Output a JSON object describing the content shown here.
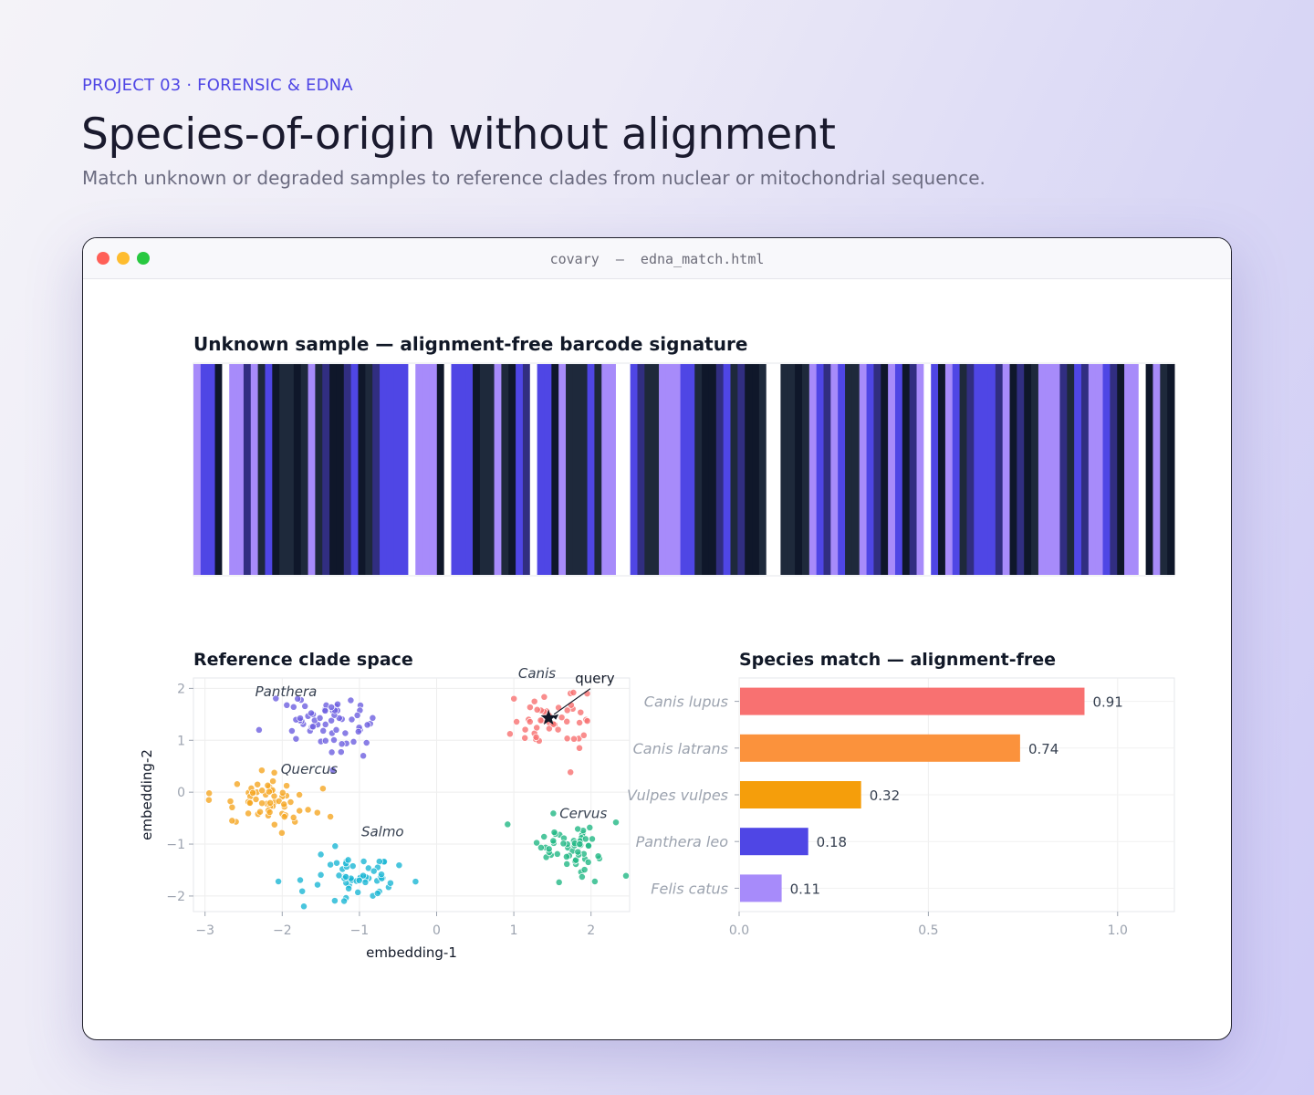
{
  "header": {
    "eyebrow": "PROJECT 03 · FORENSIC & EDNA",
    "title": "Species-of-origin without alignment",
    "subtitle": "Match unknown or degraded samples to reference clades from nuclear or mitochondrial sequence."
  },
  "window": {
    "title": "covary  —  edna_match.html"
  },
  "colors": {
    "barcode_palette": [
      "#4f46e5",
      "#a78bfa",
      "#1e293b",
      "#0f172a",
      "#312e81",
      "#ffffff"
    ],
    "clades": {
      "Panthera": "#6d5fe0",
      "Canis": "#f87171",
      "Quercus": "#f5a623",
      "Cervus": "#22b884",
      "Salmo": "#1bb6d4"
    },
    "match_bars": [
      "#f87171",
      "#fb923c",
      "#f59e0b",
      "#4f46e5",
      "#a78bfa"
    ]
  },
  "chart_data": [
    {
      "type": "heatmap",
      "title": "Unknown sample — alignment-free barcode signature",
      "columns": [
        1,
        0,
        0,
        3,
        5,
        1,
        1,
        4,
        1,
        2,
        0,
        3,
        2,
        2,
        3,
        2,
        1,
        2,
        4,
        3,
        3,
        4,
        0,
        3,
        2,
        4,
        0,
        0,
        0,
        0,
        5,
        1,
        1,
        1,
        3,
        5,
        0,
        0,
        0,
        3,
        2,
        2,
        1,
        2,
        3,
        0,
        4,
        5,
        0,
        0,
        3,
        1,
        2,
        2,
        2,
        0,
        2,
        1,
        1,
        5,
        5,
        0,
        4,
        2,
        2,
        1,
        1,
        1,
        0,
        0,
        2,
        3,
        3,
        4,
        0,
        2,
        4,
        3,
        3,
        2,
        5,
        5,
        2,
        2,
        3,
        2,
        1,
        0,
        4,
        1,
        0,
        2,
        2,
        1,
        0,
        4,
        3,
        1,
        0,
        3,
        4,
        1,
        5,
        0,
        3,
        1,
        0,
        2,
        4,
        0,
        0,
        0,
        4,
        1,
        3,
        4,
        3,
        2,
        1,
        1,
        1,
        4,
        2,
        0,
        4,
        1,
        1,
        0,
        4,
        3,
        1,
        1,
        5,
        3,
        1,
        2,
        3
      ]
    },
    {
      "type": "scatter",
      "title": "Reference clade space",
      "xlabel": "embedding-1",
      "ylabel": "embedding-2",
      "xlim": [
        -3.15,
        2.5
      ],
      "ylim": [
        -2.3,
        2.2
      ],
      "xticks": [
        "−3",
        "−2",
        "−1",
        "0",
        "1",
        "2"
      ],
      "yticks": [
        "−2",
        "−1",
        "0",
        "1",
        "2"
      ],
      "grid": true,
      "series": [
        {
          "name": "Panthera",
          "center": [
            -1.5,
            1.3
          ],
          "spread": [
            0.3,
            0.3
          ],
          "n": 60,
          "extra": [
            [
              -2.3,
              1.2
            ],
            [
              -0.95,
              0.7
            ],
            [
              -1.8,
              1.8
            ]
          ]
        },
        {
          "name": "Canis",
          "center": [
            1.5,
            1.4
          ],
          "spread": [
            0.25,
            0.28
          ],
          "n": 45,
          "extra": [
            [
              1.85,
              0.85
            ],
            [
              1.95,
              1.9
            ]
          ]
        },
        {
          "name": "Quercus",
          "center": [
            -2.2,
            -0.2
          ],
          "spread": [
            0.28,
            0.2
          ],
          "n": 60,
          "extra": [
            [
              -2.95,
              -0.15
            ],
            [
              -2.65,
              -0.55
            ]
          ]
        },
        {
          "name": "Cervus",
          "center": [
            1.8,
            -1.05
          ],
          "spread": [
            0.27,
            0.25
          ],
          "n": 55,
          "extra": [
            [
              0.92,
              -0.62
            ],
            [
              2.05,
              -1.72
            ]
          ]
        },
        {
          "name": "Salmo",
          "center": [
            -0.95,
            -1.6
          ],
          "spread": [
            0.27,
            0.22
          ],
          "n": 55,
          "extra": [
            [
              -2.05,
              -1.72
            ],
            [
              -1.72,
              -2.2
            ],
            [
              -1.5,
              -1.2
            ]
          ]
        }
      ],
      "query": {
        "label": "query",
        "x": 1.45,
        "y": 1.43,
        "label_pos": [
          2.05,
          2.1
        ]
      }
    },
    {
      "type": "bar",
      "orientation": "horizontal",
      "title": "Species match — alignment-free",
      "categories": [
        "Canis lupus",
        "Canis latrans",
        "Vulpes vulpes",
        "Panthera leo",
        "Felis catus"
      ],
      "values": [
        0.91,
        0.74,
        0.32,
        0.18,
        0.11
      ],
      "value_labels": [
        "0.91",
        "0.74",
        "0.32",
        "0.18",
        "0.11"
      ],
      "xlim": [
        0,
        1.15
      ],
      "xticks": [
        "0.0",
        "0.5",
        "1.0"
      ],
      "grid": true
    }
  ]
}
